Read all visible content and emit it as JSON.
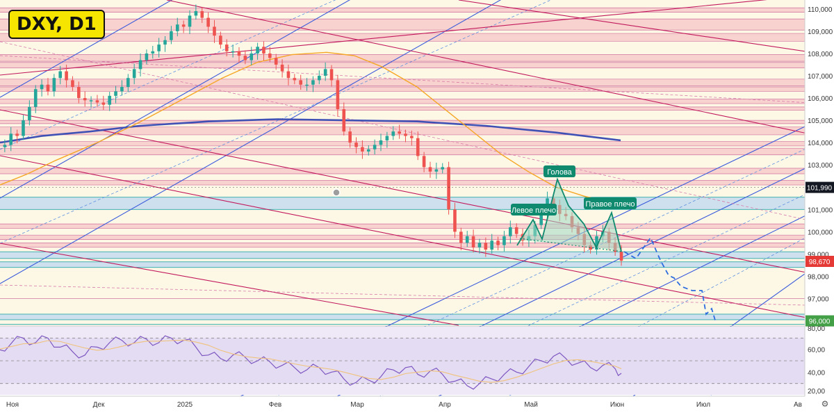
{
  "header": {
    "ticker_label": "DXY, D1"
  },
  "price_axis": {
    "ticks": [
      "110,000",
      "109,000",
      "108,000",
      "107,000",
      "106,000",
      "105,000",
      "104,000",
      "103,000",
      "101,000",
      "100,000",
      "99,000",
      "98,000",
      "97,000"
    ],
    "tag_current": "101,990",
    "tag_last": "98,670",
    "tag_target": "96,000"
  },
  "rsi_axis": {
    "ticks": [
      "80,00",
      "60,00",
      "40,00",
      "20,00"
    ]
  },
  "time_axis": {
    "labels": [
      "Ноя",
      "Дек",
      "2025",
      "Фев",
      "Мар",
      "Апр",
      "Май",
      "Июн",
      "Июл",
      "Ав"
    ]
  },
  "annotations": {
    "head": "Голова",
    "left_shoulder": "Левое плечо",
    "right_shoulder": "Правое плечо"
  },
  "colors": {
    "up": "#26a69a",
    "down": "#ef5350",
    "ma_fast": "#f5a623",
    "ma_slow": "#3f51b5",
    "channel": "#3b5bdb",
    "downtrend": "#c2185b",
    "label_bg": "#0f8a6e",
    "tag_current": "#131722",
    "tag_last": "#e53935",
    "tag_target": "#43a047",
    "rsi": "#7e57c2"
  },
  "chart_data": {
    "type": "candlestick",
    "symbol": "DXY",
    "timeframe": "D1",
    "ylim": [
      95.8,
      110.4
    ],
    "price_levels": {
      "current": 101.99,
      "last": 98.67,
      "target": 96.0
    },
    "pattern": "Голова и плечи",
    "rsi": {
      "ylim": [
        20,
        80
      ],
      "levels": [
        70,
        50,
        30
      ]
    },
    "closes_approx": [
      [
        0,
        103.8
      ],
      [
        3,
        103.9
      ],
      [
        6,
        104.4
      ],
      [
        9,
        104.3
      ],
      [
        12,
        105.0
      ],
      [
        15,
        105.6
      ],
      [
        18,
        106.4
      ],
      [
        21,
        106.6
      ],
      [
        24,
        106.3
      ],
      [
        27,
        106.9
      ],
      [
        30,
        107.2
      ],
      [
        33,
        106.8
      ],
      [
        36,
        106.5
      ],
      [
        39,
        106.0
      ],
      [
        42,
        105.9
      ],
      [
        45,
        105.9
      ],
      [
        48,
        105.8
      ],
      [
        51,
        105.7
      ],
      [
        54,
        106.1
      ],
      [
        57,
        106.3
      ],
      [
        60,
        106.5
      ],
      [
        63,
        106.9
      ],
      [
        66,
        107.3
      ],
      [
        69,
        107.7
      ],
      [
        72,
        108.0
      ],
      [
        75,
        108.1
      ],
      [
        78,
        108.4
      ],
      [
        81,
        108.6
      ],
      [
        84,
        109.0
      ],
      [
        87,
        109.3
      ],
      [
        90,
        109.2
      ],
      [
        93,
        109.7
      ],
      [
        96,
        109.9
      ],
      [
        99,
        109.6
      ],
      [
        102,
        109.2
      ],
      [
        105,
        108.8
      ],
      [
        108,
        108.4
      ],
      [
        111,
        108.1
      ],
      [
        114,
        108.1
      ],
      [
        117,
        107.9
      ],
      [
        120,
        107.7
      ],
      [
        123,
        108.0
      ],
      [
        126,
        108.3
      ],
      [
        129,
        108.0
      ],
      [
        132,
        107.8
      ],
      [
        135,
        107.5
      ],
      [
        138,
        107.2
      ],
      [
        141,
        106.9
      ],
      [
        144,
        106.8
      ],
      [
        147,
        106.6
      ],
      [
        150,
        106.6
      ],
      [
        153,
        106.8
      ],
      [
        156,
        107.0
      ],
      [
        159,
        107.3
      ],
      [
        162,
        106.8
      ],
      [
        165,
        105.5
      ],
      [
        168,
        104.5
      ],
      [
        171,
        104.0
      ],
      [
        174,
        103.8
      ],
      [
        177,
        103.6
      ],
      [
        180,
        103.7
      ],
      [
        183,
        103.9
      ],
      [
        186,
        104.1
      ],
      [
        189,
        104.3
      ],
      [
        192,
        104.5
      ],
      [
        195,
        104.4
      ],
      [
        198,
        104.3
      ],
      [
        201,
        104.2
      ],
      [
        204,
        103.4
      ],
      [
        207,
        102.9
      ],
      [
        210,
        102.7
      ],
      [
        213,
        102.8
      ],
      [
        216,
        102.9
      ],
      [
        219,
        101.0
      ],
      [
        222,
        100.0
      ],
      [
        225,
        99.5
      ],
      [
        228,
        99.8
      ],
      [
        231,
        99.3
      ],
      [
        234,
        99.5
      ],
      [
        237,
        99.2
      ],
      [
        240,
        99.6
      ],
      [
        243,
        99.4
      ],
      [
        246,
        99.8
      ],
      [
        249,
        100.2
      ],
      [
        252,
        99.9
      ],
      [
        255,
        99.6
      ],
      [
        258,
        99.8
      ],
      [
        261,
        100.3
      ],
      [
        264,
        100.8
      ],
      [
        267,
        101.5
      ],
      [
        270,
        101.2
      ],
      [
        273,
        100.8
      ],
      [
        276,
        100.7
      ],
      [
        279,
        100.2
      ],
      [
        282,
        99.9
      ],
      [
        285,
        99.4
      ],
      [
        288,
        99.2
      ],
      [
        291,
        99.8
      ],
      [
        294,
        100.0
      ],
      [
        297,
        99.5
      ],
      [
        300,
        99.1
      ],
      [
        303,
        98.7
      ]
    ],
    "rsi_approx": [
      [
        0,
        60
      ],
      [
        6,
        65
      ],
      [
        12,
        70
      ],
      [
        18,
        66
      ],
      [
        24,
        70
      ],
      [
        30,
        62
      ],
      [
        36,
        58
      ],
      [
        42,
        55
      ],
      [
        48,
        62
      ],
      [
        54,
        66
      ],
      [
        60,
        68
      ],
      [
        66,
        66
      ],
      [
        72,
        69
      ],
      [
        78,
        66
      ],
      [
        84,
        70
      ],
      [
        90,
        68
      ],
      [
        96,
        62
      ],
      [
        102,
        55
      ],
      [
        108,
        52
      ],
      [
        114,
        55
      ],
      [
        120,
        53
      ],
      [
        126,
        50
      ],
      [
        132,
        49
      ],
      [
        138,
        46
      ],
      [
        144,
        44
      ],
      [
        150,
        42
      ],
      [
        156,
        44
      ],
      [
        162,
        40
      ],
      [
        168,
        34
      ],
      [
        174,
        31
      ],
      [
        180,
        33
      ],
      [
        186,
        36
      ],
      [
        192,
        42
      ],
      [
        198,
        44
      ],
      [
        204,
        38
      ],
      [
        210,
        41
      ],
      [
        216,
        38
      ],
      [
        222,
        32
      ],
      [
        228,
        28
      ],
      [
        234,
        30
      ],
      [
        240,
        34
      ],
      [
        246,
        38
      ],
      [
        252,
        40
      ],
      [
        258,
        45
      ],
      [
        264,
        50
      ],
      [
        270,
        54
      ],
      [
        276,
        52
      ],
      [
        282,
        48
      ],
      [
        288,
        44
      ],
      [
        294,
        46
      ],
      [
        300,
        43
      ],
      [
        303,
        39
      ]
    ]
  }
}
